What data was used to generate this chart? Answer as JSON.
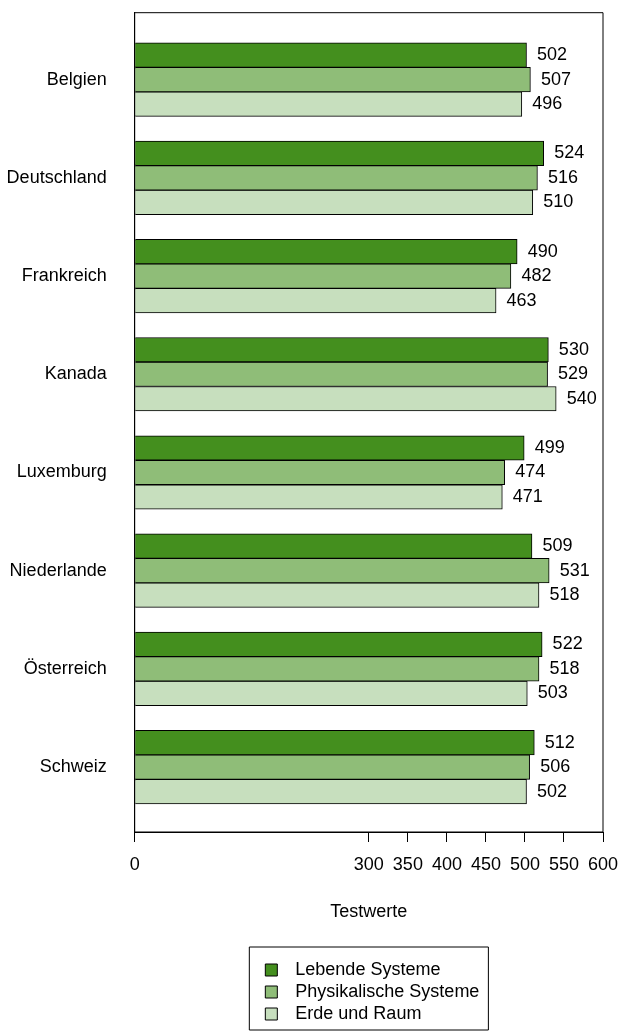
{
  "chart_data": {
    "type": "bar",
    "orientation": "horizontal",
    "xlabel": "Testwerte",
    "categories": [
      "Belgien",
      "Deutschland",
      "Frankreich",
      "Kanada",
      "Luxemburg",
      "Niederlande",
      "Österreich",
      "Schweiz"
    ],
    "series": [
      {
        "name": "Lebende Systeme",
        "color": "#448f1e",
        "values": [
          502,
          524,
          490,
          530,
          499,
          509,
          522,
          512
        ]
      },
      {
        "name": "Physikalische Systeme",
        "color": "#8fbd78",
        "values": [
          507,
          516,
          482,
          529,
          474,
          531,
          518,
          506
        ]
      },
      {
        "name": "Erde und Raum",
        "color": "#c7dfbe",
        "values": [
          496,
          510,
          463,
          540,
          471,
          518,
          503,
          502
        ]
      }
    ],
    "xlim": [
      0,
      600
    ],
    "xticks": [
      0,
      300,
      350,
      400,
      450,
      500,
      550,
      600
    ],
    "data_labels": true,
    "legend": "bottom"
  }
}
